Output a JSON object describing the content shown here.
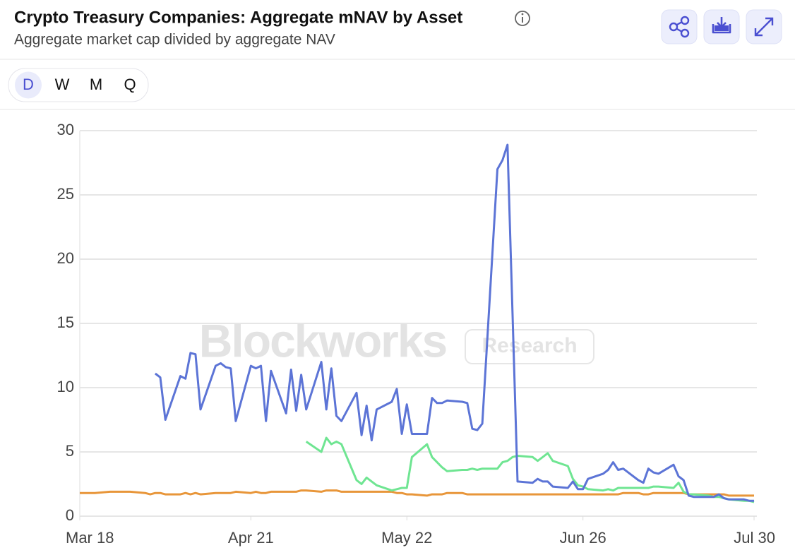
{
  "header": {
    "title": "Crypto Treasury Companies: Aggregate mNAV by Asset",
    "subtitle": "Aggregate market cap divided by aggregate NAV"
  },
  "toolbar": {
    "periods": [
      "D",
      "W",
      "M",
      "Q"
    ],
    "selected": 0
  },
  "watermark": {
    "brand": "Blockworks",
    "tag": "Research"
  },
  "chart_data": {
    "type": "line",
    "x": [
      "Mar 18",
      "Mar 19",
      "Mar 20",
      "Mar 21",
      "Mar 24",
      "Mar 25",
      "Mar 26",
      "Mar 27",
      "Mar 28",
      "Mar 31",
      "Apr 1",
      "Apr 2",
      "Apr 3",
      "Apr 4",
      "Apr 7",
      "Apr 8",
      "Apr 9",
      "Apr 10",
      "Apr 11",
      "Apr 14",
      "Apr 15",
      "Apr 16",
      "Apr 17",
      "Apr 18",
      "Apr 21",
      "Apr 22",
      "Apr 23",
      "Apr 24",
      "Apr 25",
      "Apr 28",
      "Apr 29",
      "Apr 30",
      "May 1",
      "May 2",
      "May 5",
      "May 6",
      "May 7",
      "May 8",
      "May 9",
      "May 12",
      "May 13",
      "May 14",
      "May 15",
      "May 16",
      "May 19",
      "May 20",
      "May 21",
      "May 22",
      "May 23",
      "May 26",
      "May 27",
      "May 28",
      "May 29",
      "May 30",
      "Jun 2",
      "Jun 3",
      "Jun 4",
      "Jun 5",
      "Jun 6",
      "Jun 9",
      "Jun 10",
      "Jun 11",
      "Jun 12",
      "Jun 13",
      "Jun 16",
      "Jun 17",
      "Jun 18",
      "Jun 19",
      "Jun 20",
      "Jun 23",
      "Jun 24",
      "Jun 25",
      "Jun 26",
      "Jun 27",
      "Jun 30",
      "Jul 1",
      "Jul 2",
      "Jul 3",
      "Jul 4",
      "Jul 7",
      "Jul 8",
      "Jul 9",
      "Jul 10",
      "Jul 11",
      "Jul 14",
      "Jul 15",
      "Jul 16",
      "Jul 17",
      "Jul 18",
      "Jul 21",
      "Jul 22",
      "Jul 23",
      "Jul 24",
      "Jul 25",
      "Jul 28",
      "Jul 29",
      "Jul 30"
    ],
    "series": [
      {
        "color": "#5c74d6",
        "values": [
          null,
          null,
          null,
          null,
          null,
          null,
          null,
          null,
          null,
          null,
          null,
          11.1,
          10.8,
          7.5,
          10.9,
          10.7,
          12.7,
          12.6,
          8.3,
          11.7,
          11.9,
          11.6,
          11.5,
          7.4,
          11.7,
          11.5,
          11.7,
          7.4,
          11.3,
          8.0,
          11.4,
          8.2,
          11.0,
          8.3,
          12.0,
          8.3,
          11.5,
          7.8,
          7.4,
          9.6,
          6.3,
          8.6,
          5.9,
          8.3,
          8.9,
          9.9,
          6.4,
          8.7,
          6.4,
          6.4,
          9.2,
          8.8,
          8.8,
          9.0,
          8.9,
          8.8,
          6.8,
          6.7,
          7.2,
          27.0,
          27.7,
          28.9,
          15.8,
          2.7,
          2.6,
          2.9,
          2.7,
          2.7,
          2.3,
          2.2,
          2.7,
          2.1,
          2.1,
          2.9,
          3.3,
          3.6,
          4.2,
          3.6,
          3.7,
          2.8,
          2.6,
          3.7,
          3.4,
          3.3,
          4.0,
          3.1,
          2.8,
          1.6,
          1.5,
          1.5,
          1.5,
          1.7,
          1.4,
          1.3,
          1.3,
          1.2,
          1.2
        ]
      },
      {
        "color": "#6fe592",
        "values": [
          null,
          null,
          null,
          null,
          null,
          null,
          null,
          null,
          null,
          null,
          null,
          null,
          null,
          null,
          null,
          null,
          null,
          null,
          null,
          null,
          null,
          null,
          null,
          null,
          null,
          null,
          null,
          null,
          null,
          null,
          null,
          null,
          null,
          5.8,
          5.0,
          6.1,
          5.6,
          5.8,
          5.6,
          2.8,
          2.5,
          3.0,
          2.7,
          2.4,
          2.0,
          2.1,
          2.2,
          2.2,
          4.6,
          5.6,
          4.6,
          4.2,
          3.8,
          3.5,
          3.6,
          3.6,
          3.7,
          3.6,
          3.7,
          3.7,
          4.2,
          4.3,
          4.6,
          4.7,
          4.6,
          4.3,
          4.6,
          4.9,
          4.3,
          3.9,
          2.9,
          2.4,
          2.3,
          2.1,
          2.0,
          2.1,
          2.0,
          2.2,
          2.2,
          2.2,
          2.2,
          2.2,
          2.3,
          2.3,
          2.2,
          2.6,
          1.9,
          1.7,
          1.7,
          1.6,
          1.5,
          1.5,
          1.4,
          1.3,
          1.2,
          1.2,
          1.1
        ]
      },
      {
        "color": "#e8963a",
        "values": [
          1.8,
          1.8,
          1.8,
          1.8,
          1.9,
          1.9,
          1.9,
          1.9,
          1.9,
          1.8,
          1.7,
          1.8,
          1.8,
          1.7,
          1.7,
          1.8,
          1.7,
          1.8,
          1.7,
          1.8,
          1.8,
          1.8,
          1.8,
          1.9,
          1.8,
          1.9,
          1.8,
          1.8,
          1.9,
          1.9,
          1.9,
          1.9,
          2.0,
          2.0,
          1.9,
          2.0,
          2.0,
          2.0,
          1.9,
          1.9,
          1.9,
          1.9,
          1.9,
          1.9,
          1.9,
          1.8,
          1.8,
          1.7,
          1.7,
          1.6,
          1.7,
          1.7,
          1.7,
          1.8,
          1.8,
          1.7,
          1.7,
          1.7,
          1.7,
          1.7,
          1.7,
          1.7,
          1.7,
          1.7,
          1.7,
          1.7,
          1.7,
          1.7,
          1.7,
          1.7,
          1.7,
          1.7,
          1.7,
          1.7,
          1.7,
          1.7,
          1.7,
          1.7,
          1.8,
          1.8,
          1.7,
          1.7,
          1.8,
          1.8,
          1.8,
          1.8,
          1.8,
          1.7,
          1.7,
          1.7,
          1.7,
          1.7,
          1.7,
          1.6,
          1.6,
          1.6,
          1.6
        ]
      }
    ],
    "ylim": [
      0,
      30
    ],
    "yticks": [
      0,
      5,
      10,
      15,
      20,
      25,
      30
    ],
    "xticks": [
      "Mar 18",
      "Apr 21",
      "May 22",
      "Jun 26",
      "Jul 30"
    ],
    "grid": true
  }
}
